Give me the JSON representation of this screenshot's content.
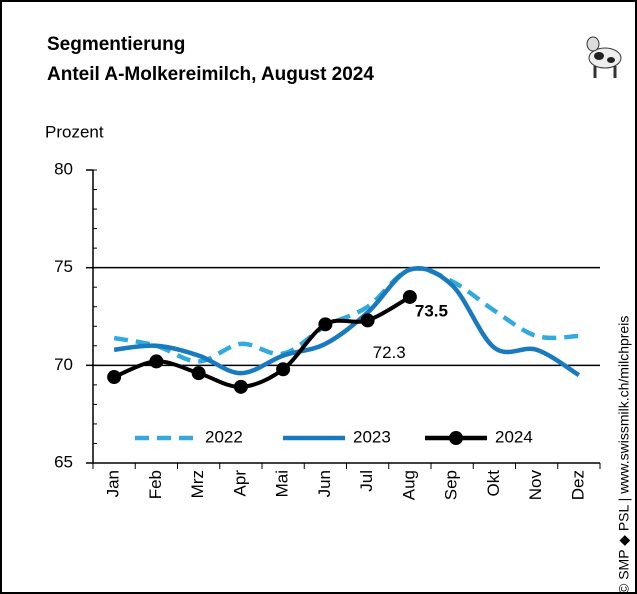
{
  "chart_data": {
    "type": "line",
    "title": "Segmentierung",
    "subtitle": "Anteil A-Molkereimilch, August 2024",
    "y_label": "Prozent",
    "source": "© SMP ◆ PSL | www.swissmilk.ch/milchpreis",
    "categories": [
      "Jan",
      "Feb",
      "Mrz",
      "Apr",
      "Mai",
      "Jun",
      "Jul",
      "Aug",
      "Sep",
      "Okt",
      "Nov",
      "Dez"
    ],
    "series": [
      {
        "name": "2022",
        "color": "#33aadd",
        "style": "dashed",
        "values": [
          71.4,
          71.0,
          70.2,
          71.1,
          70.6,
          72.0,
          73.0,
          74.9,
          74.3,
          72.8,
          71.5,
          71.5
        ]
      },
      {
        "name": "2023",
        "color": "#1a7abf",
        "style": "solid",
        "values": [
          70.8,
          71.0,
          70.5,
          69.6,
          70.5,
          71.1,
          72.7,
          74.9,
          74.1,
          70.9,
          70.8,
          69.5
        ]
      },
      {
        "name": "2024",
        "color": "#000000",
        "style": "markers",
        "values": [
          69.4,
          70.2,
          69.6,
          68.9,
          69.8,
          72.1,
          72.3,
          73.5,
          null,
          null,
          null,
          null
        ],
        "value_labels": [
          null,
          null,
          null,
          null,
          null,
          null,
          "72.3",
          "73.5",
          null,
          null,
          null,
          null
        ]
      }
    ],
    "ylim": [
      65,
      80
    ],
    "yticks": [
      65,
      70,
      75,
      80
    ],
    "grid": true,
    "legend": "bottom"
  }
}
